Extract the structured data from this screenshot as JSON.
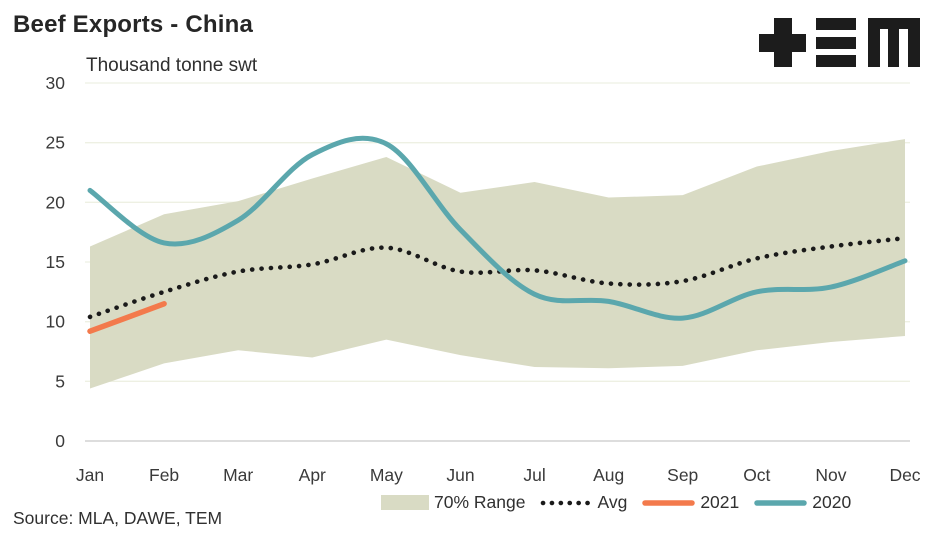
{
  "header": {
    "title": "Beef Exports - China",
    "subtitle": "Thousand tonne swt"
  },
  "logo": {
    "name": "TEM logo",
    "color": "#1c1c1c"
  },
  "source": {
    "text": "Source: MLA, DAWE, TEM"
  },
  "legend": {
    "items": [
      {
        "label": "70% Range"
      },
      {
        "label": "Avg"
      },
      {
        "label": "2021"
      },
      {
        "label": "2020"
      }
    ]
  },
  "chart_data": {
    "type": "line",
    "title": "Beef Exports - China",
    "ylabel": "Thousand tonne swt",
    "categories": [
      "Jan",
      "Feb",
      "Mar",
      "Apr",
      "May",
      "Jun",
      "Jul",
      "Aug",
      "Sep",
      "Oct",
      "Nov",
      "Dec"
    ],
    "y_axis": {
      "min": 0,
      "max": 30,
      "step": 5
    },
    "grid": "horizontal-only",
    "legend_position": "bottom",
    "series": [
      {
        "name": "70% Range upper",
        "style": "band-upper",
        "values": [
          16.3,
          19.0,
          20.1,
          22.0,
          23.8,
          20.8,
          21.7,
          20.4,
          20.6,
          23.0,
          24.3,
          25.3
        ]
      },
      {
        "name": "70% Range lower",
        "style": "band-lower",
        "values": [
          4.4,
          6.5,
          7.6,
          7.0,
          8.5,
          7.2,
          6.2,
          6.1,
          6.3,
          7.6,
          8.3,
          8.8
        ]
      },
      {
        "name": "Avg",
        "style": "dotted",
        "values": [
          10.4,
          12.5,
          14.2,
          14.8,
          16.2,
          14.2,
          14.3,
          13.2,
          13.4,
          15.3,
          16.3,
          17.0
        ]
      },
      {
        "name": "2021",
        "style": "solid",
        "values": [
          9.2,
          11.5,
          null,
          null,
          null,
          null,
          null,
          null,
          null,
          null,
          null,
          null
        ]
      },
      {
        "name": "2020",
        "style": "solid-smooth",
        "values": [
          21.0,
          16.6,
          18.5,
          24.0,
          24.9,
          17.7,
          12.3,
          11.7,
          10.3,
          12.5,
          12.9,
          15.1
        ]
      }
    ],
    "colors": {
      "band": "#d9dbc4",
      "avg": "#1a1a1a",
      "y2021": "#f37a4c",
      "y2020": "#5ba7ad",
      "gridline": "#eef0e3",
      "axis_line": "#d8d8d8",
      "tick_text": "#3a3a3a"
    }
  }
}
